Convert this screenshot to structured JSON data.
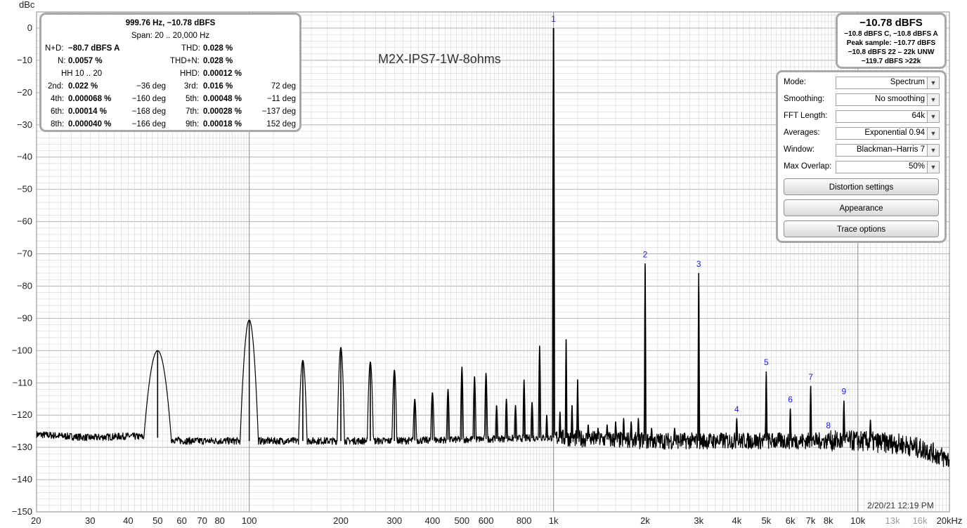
{
  "chart_data": {
    "type": "line",
    "title": "M2X-IPS7-1W-8ohms",
    "ylabel": "dBc",
    "xlabel": "",
    "x_scale": "log",
    "xlim": [
      20,
      20000
    ],
    "ylim": [
      -150,
      5
    ],
    "y_ticks": [
      0,
      -10,
      -20,
      -30,
      -40,
      -50,
      -60,
      -70,
      -80,
      -90,
      -100,
      -110,
      -120,
      -130,
      -140,
      -150
    ],
    "x_ticks": [
      {
        "value": 20,
        "label": "20"
      },
      {
        "value": 30,
        "label": "30"
      },
      {
        "value": 40,
        "label": "40"
      },
      {
        "value": 50,
        "label": "50"
      },
      {
        "value": 60,
        "label": "60"
      },
      {
        "value": 70,
        "label": "70"
      },
      {
        "value": 80,
        "label": "80"
      },
      {
        "value": 100,
        "label": "100"
      },
      {
        "value": 200,
        "label": "200"
      },
      {
        "value": 300,
        "label": "300"
      },
      {
        "value": 400,
        "label": "400"
      },
      {
        "value": 500,
        "label": "500"
      },
      {
        "value": 600,
        "label": "600"
      },
      {
        "value": 800,
        "label": "800"
      },
      {
        "value": 1000,
        "label": "1k"
      },
      {
        "value": 2000,
        "label": "2k"
      },
      {
        "value": 3000,
        "label": "3k"
      },
      {
        "value": 4000,
        "label": "4k"
      },
      {
        "value": 5000,
        "label": "5k"
      },
      {
        "value": 6000,
        "label": "6k"
      },
      {
        "value": 7000,
        "label": "7k"
      },
      {
        "value": 8000,
        "label": "8k"
      },
      {
        "value": 10000,
        "label": "10k"
      },
      {
        "value": 13000,
        "label": "13k",
        "dim": true
      },
      {
        "value": 16000,
        "label": "16k",
        "dim": true
      },
      {
        "value": 20000,
        "label": "20kHz"
      }
    ],
    "noise_floor": [
      [
        20,
        -126
      ],
      [
        30,
        -127
      ],
      [
        40,
        -126.5
      ],
      [
        50,
        -127
      ],
      [
        60,
        -128
      ],
      [
        80,
        -128
      ],
      [
        100,
        -128
      ],
      [
        300,
        -128
      ],
      [
        1000,
        -127
      ],
      [
        2000,
        -128
      ],
      [
        5000,
        -128
      ],
      [
        10000,
        -128
      ],
      [
        14000,
        -129
      ],
      [
        17000,
        -131
      ],
      [
        20000,
        -134
      ]
    ],
    "peaks": [
      {
        "f": 50,
        "level": -100,
        "w": 0.045
      },
      {
        "f": 100,
        "level": -90.5,
        "w": 0.03
      },
      {
        "f": 150,
        "level": -103,
        "w": 0.014
      },
      {
        "f": 200,
        "level": -99,
        "w": 0.012
      },
      {
        "f": 250,
        "level": -103.5,
        "w": 0.01
      },
      {
        "f": 300,
        "level": -106,
        "w": 0.008
      },
      {
        "f": 350,
        "level": -115,
        "w": 0.006
      },
      {
        "f": 400,
        "level": -113,
        "w": 0.006
      },
      {
        "f": 450,
        "level": -112,
        "w": 0.005
      },
      {
        "f": 500,
        "level": -105,
        "w": 0.005
      },
      {
        "f": 550,
        "level": -108,
        "w": 0.005
      },
      {
        "f": 600,
        "level": -107,
        "w": 0.005
      },
      {
        "f": 650,
        "level": -117,
        "w": 0.004
      },
      {
        "f": 700,
        "level": -115,
        "w": 0.004
      },
      {
        "f": 750,
        "level": -117,
        "w": 0.004
      },
      {
        "f": 800,
        "level": -109,
        "w": 0.004
      },
      {
        "f": 850,
        "level": -116,
        "w": 0.004
      },
      {
        "f": 900,
        "level": -98.5,
        "w": 0.004
      },
      {
        "f": 950,
        "level": -120,
        "w": 0.003
      },
      {
        "f": 1000,
        "level": 0,
        "w": 0.004
      },
      {
        "f": 1050,
        "level": -119,
        "w": 0.003
      },
      {
        "f": 1100,
        "level": -96.5,
        "w": 0.003
      },
      {
        "f": 1150,
        "level": -117,
        "w": 0.003
      },
      {
        "f": 1200,
        "level": -109,
        "w": 0.003
      },
      {
        "f": 1300,
        "level": -123,
        "w": 0.003
      },
      {
        "f": 1400,
        "level": -124,
        "w": 0.003
      },
      {
        "f": 1500,
        "level": -123,
        "w": 0.003
      },
      {
        "f": 1600,
        "level": -122,
        "w": 0.003
      },
      {
        "f": 1700,
        "level": -121,
        "w": 0.003
      },
      {
        "f": 1800,
        "level": -122,
        "w": 0.003
      },
      {
        "f": 1900,
        "level": -121,
        "w": 0.003
      },
      {
        "f": 2000,
        "level": -73,
        "w": 0.003
      },
      {
        "f": 2100,
        "level": -124,
        "w": 0.003
      },
      {
        "f": 2500,
        "level": -124,
        "w": 0.003
      },
      {
        "f": 3000,
        "level": -76,
        "w": 0.003
      },
      {
        "f": 4000,
        "level": -121,
        "w": 0.003
      },
      {
        "f": 5000,
        "level": -106.5,
        "w": 0.003
      },
      {
        "f": 6000,
        "level": -118,
        "w": 0.003
      },
      {
        "f": 7000,
        "level": -111,
        "w": 0.003
      },
      {
        "f": 8000,
        "level": -126,
        "w": 0.003
      },
      {
        "f": 9000,
        "level": -115.5,
        "w": 0.003
      },
      {
        "f": 11000,
        "level": -121.5,
        "w": 0.003
      }
    ],
    "harmonic_labels": [
      {
        "n": "1",
        "f": 1000,
        "level": 0
      },
      {
        "n": "2",
        "f": 2000,
        "level": -73
      },
      {
        "n": "3",
        "f": 3000,
        "level": -76
      },
      {
        "n": "4",
        "f": 4000,
        "level": -121
      },
      {
        "n": "5",
        "f": 5000,
        "level": -106.5
      },
      {
        "n": "6",
        "f": 6000,
        "level": -118
      },
      {
        "n": "7",
        "f": 7000,
        "level": -111
      },
      {
        "n": "8",
        "f": 8000,
        "level": -126
      },
      {
        "n": "9",
        "f": 9000,
        "level": -115.5
      }
    ],
    "colors": {
      "trace": "#000000",
      "harmonic_label": "#1a1adf",
      "grid": "#d4d4d4",
      "grid_major": "#b4b4b4"
    }
  },
  "stats": {
    "header": "999.76 Hz, −10.78 dBFS",
    "span": "Span: 20 .. 20,000 Hz",
    "nd_label": "N+D:",
    "nd_value": "−80.7 dBFS A",
    "thd_label": "THD:",
    "thd_value": "0.028 %",
    "n_label": "N:",
    "n_value": "0.0057 %",
    "thdn_label": "THD+N:",
    "thdn_value": "0.028 %",
    "hh_label": "HH 10 .. 20",
    "hhd_label": "HHD:",
    "hhd_value": "0.00012 %",
    "h2_label": "2nd:",
    "h2_value": "0.022 %",
    "h2_phase": "−36 deg",
    "h3_label": "3rd:",
    "h3_value": "0.016 %",
    "h3_phase": "72 deg",
    "h4_label": "4th:",
    "h4_value": "0.000068 %",
    "h4_phase": "−160 deg",
    "h5_label": "5th:",
    "h5_value": "0.00048 %",
    "h5_phase": "−11 deg",
    "h6_label": "6th:",
    "h6_value": "0.00014 %",
    "h6_phase": "−168 deg",
    "h7_label": "7th:",
    "h7_value": "0.00028 %",
    "h7_phase": "−137 deg",
    "h8_label": "8th:",
    "h8_value": "0.000040 %",
    "h8_phase": "−166 deg",
    "h9_label": "9th:",
    "h9_value": "0.00018 %",
    "h9_phase": "152 deg"
  },
  "level": {
    "main": "−10.78 dBFS",
    "line1": "−10.8 dBFS C, −10.8 dBFS A",
    "line2": "Peak sample: −10.77 dBFS",
    "line3": "−10.8 dBFS 22 – 22k UNW",
    "line4": "−119.7 dBFS >22k"
  },
  "settings": {
    "mode_label": "Mode:",
    "mode_value": "Spectrum",
    "smoothing_label": "Smoothing:",
    "smoothing_value": "No  smoothing",
    "fft_label": "FFT Length:",
    "fft_value": "64k",
    "averages_label": "Averages:",
    "averages_value": "Exponential 0.94",
    "window_label": "Window:",
    "window_value": "Blackman–Harris 7",
    "overlap_label": "Max Overlap:",
    "overlap_value": "50%",
    "distortion_button": "Distortion settings",
    "appearance_button": "Appearance",
    "trace_button": "Trace options",
    "dropdown_icon": "chevron-down-icon"
  },
  "timestamp": "2/20/21 12:19 PM"
}
